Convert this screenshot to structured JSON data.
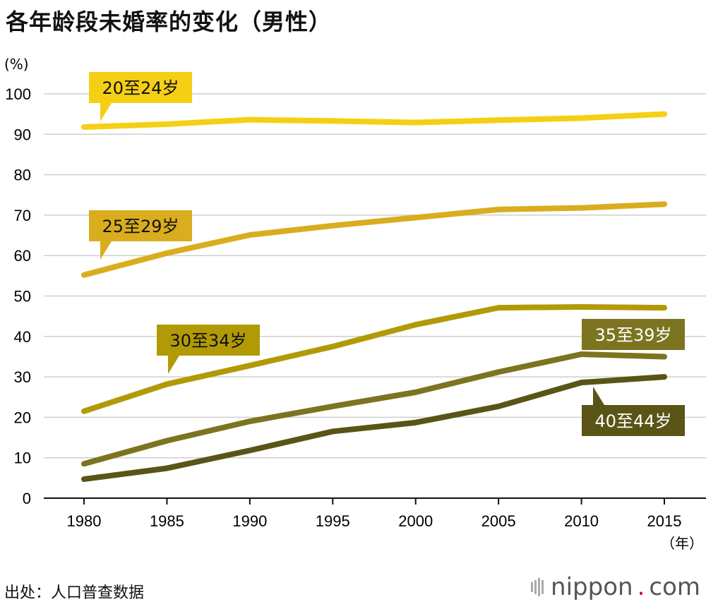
{
  "chart_data": {
    "type": "line",
    "title": "各年龄段未婚率的变化（男性）",
    "ylabel": "(%)",
    "xlabel": "（年）",
    "ylim": [
      0,
      100
    ],
    "yticks": [
      0,
      10,
      20,
      30,
      40,
      50,
      60,
      70,
      80,
      90,
      100
    ],
    "x": [
      "1980",
      "1985",
      "1990",
      "1995",
      "2000",
      "2005",
      "2010",
      "2015"
    ],
    "grid": true,
    "series": [
      {
        "name": "20至24岁",
        "color": "#f5cf14",
        "values": [
          91.8,
          92.5,
          93.6,
          93.3,
          92.9,
          93.5,
          94.0,
          95.0
        ]
      },
      {
        "name": "25至29岁",
        "color": "#d9ad1e",
        "values": [
          55.2,
          60.6,
          65.1,
          67.4,
          69.4,
          71.4,
          71.8,
          72.7
        ]
      },
      {
        "name": "30至34岁",
        "color": "#b19a06",
        "values": [
          21.5,
          28.2,
          32.8,
          37.5,
          42.9,
          47.1,
          47.3,
          47.1
        ]
      },
      {
        "name": "35至39岁",
        "color": "#7c7420",
        "values": [
          8.5,
          14.2,
          19.0,
          22.7,
          26.2,
          31.2,
          35.6,
          35.0
        ]
      },
      {
        "name": "40至44岁",
        "color": "#5a5416",
        "values": [
          4.7,
          7.4,
          11.8,
          16.5,
          18.7,
          22.7,
          28.6,
          30.0
        ]
      }
    ]
  },
  "footer": {
    "source": "出处：人口普查数据",
    "brand_name": "nippon",
    "brand_dot": ".",
    "brand_tld": "com"
  }
}
